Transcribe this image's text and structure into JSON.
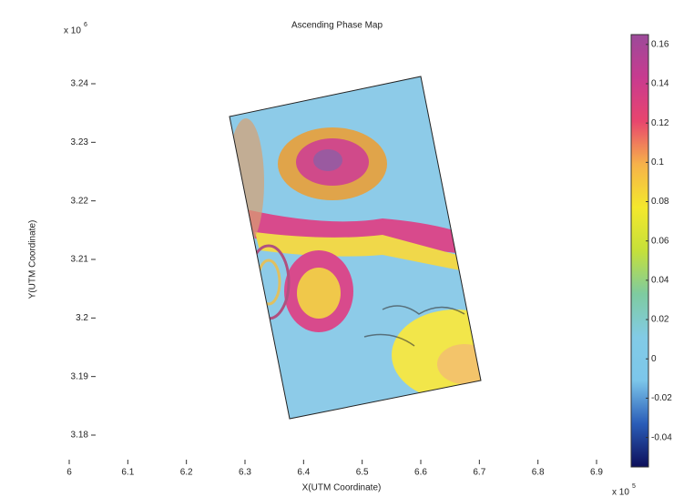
{
  "chart_data": {
    "type": "phase-map",
    "title": "Ascending Phase Map",
    "x_label": "X(UTM Coordinate)",
    "y_label": "Y(UTM Coordinate)",
    "x_offset": "x 10",
    "x_offset_power": "5",
    "y_offset": "x 10",
    "y_offset_power": "6",
    "xlim": [
      6,
      6.9
    ],
    "xticks": [
      6,
      6.1,
      6.2,
      6.3,
      6.4,
      6.5,
      6.6,
      6.7,
      6.8,
      6.9
    ],
    "ylim": [
      3.18,
      3.24
    ],
    "yticks": [
      3.18,
      3.19,
      3.2,
      3.21,
      3.22,
      3.23,
      3.24
    ],
    "clim": [
      -0.055,
      0.165
    ],
    "cticks": [
      -0.04,
      -0.02,
      0,
      0.02,
      0.04,
      0.06,
      0.08,
      0.1,
      0.12,
      0.14,
      0.16
    ],
    "colormap": [
      "#0d0f5a",
      "#2a5db8",
      "#7cc6ea",
      "#82cbe6",
      "#7ecba0",
      "#c5e03a",
      "#f4e82c",
      "#f6b24a",
      "#e8456e",
      "#c83b8f",
      "#9c4a9a"
    ]
  }
}
